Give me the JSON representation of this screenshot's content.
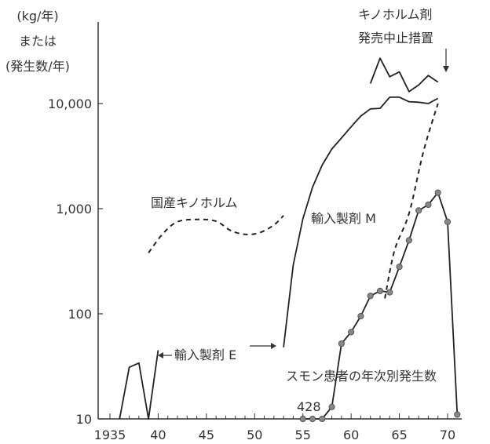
{
  "chart_data": {
    "type": "line",
    "ylabel_lines": [
      "(kg/年)",
      "または",
      "(発生数/年)"
    ],
    "yscale": "log",
    "ylim": [
      10,
      30000
    ],
    "xlim": [
      1935,
      1971
    ],
    "x_tick_labels": [
      {
        "x": 1935,
        "label": "1935"
      },
      {
        "x": 1940,
        "label": "40"
      },
      {
        "x": 1945,
        "label": "45"
      },
      {
        "x": 1950,
        "label": "50"
      },
      {
        "x": 1955,
        "label": "55"
      },
      {
        "x": 1960,
        "label": "60"
      },
      {
        "x": 1965,
        "label": "65"
      },
      {
        "x": 1970,
        "label": "70"
      }
    ],
    "y_tick_labels": [
      {
        "y": 10,
        "label": "10"
      },
      {
        "y": 100,
        "label": "100"
      },
      {
        "y": 1000,
        "label": "1,000"
      },
      {
        "y": 10000,
        "label": "10,000"
      }
    ],
    "series": [
      {
        "key": "domestic",
        "name": "国産キノホルム",
        "style": "dashed",
        "x": [
          1939,
          1940.5,
          1942,
          1944,
          1946,
          1947.5,
          1949,
          1950.5,
          1952,
          1953
        ],
        "y": [
          380,
          580,
          750,
          790,
          760,
          620,
          570,
          590,
          700,
          860
        ]
      },
      {
        "key": "importE",
        "name": "輸入製剤 E",
        "style": "solid",
        "x": [
          1936,
          1937,
          1938,
          1939,
          1940
        ],
        "y": [
          10,
          31,
          34,
          10,
          45
        ]
      },
      {
        "key": "importM",
        "name": "輸入製剤 M",
        "style": "solid",
        "x": [
          1953,
          1954,
          1955,
          1956,
          1957,
          1958,
          1959,
          1960,
          1961,
          1962,
          1963,
          1964,
          1965,
          1966,
          1967,
          1968,
          1969
        ],
        "y": [
          48,
          290,
          800,
          1600,
          2600,
          3700,
          4700,
          6000,
          7600,
          8900,
          9000,
          11500,
          11500,
          10400,
          10300,
          10000,
          11200
        ]
      },
      {
        "key": "total",
        "name": "",
        "style": "solid",
        "x": [
          1962,
          1963,
          1964,
          1965,
          1966,
          1967,
          1968,
          1969
        ],
        "y": [
          15500,
          27000,
          18000,
          20000,
          13000,
          15000,
          18500,
          16000
        ]
      },
      {
        "key": "domesticLate",
        "name": "",
        "style": "dashed",
        "x": [
          1963.5,
          1964.5,
          1966,
          1967.5,
          1969
        ],
        "y": [
          140,
          400,
          900,
          3500,
          10000
        ]
      },
      {
        "key": "patients",
        "name": "スモン患者の年次別発生数",
        "style": "markers",
        "x": [
          1955,
          1956,
          1957,
          1958,
          1959,
          1960,
          1961,
          1962,
          1963,
          1964,
          1965,
          1966,
          1967,
          1968,
          1969,
          1970,
          1971
        ],
        "y": [
          10,
          10,
          10,
          13,
          52,
          67,
          95,
          148,
          165,
          160,
          280,
          500,
          960,
          1090,
          1420,
          750,
          11
        ]
      }
    ],
    "annotations": {
      "domestic_label": "国産キノホルム",
      "importE_label": "輸入製剤 E",
      "importM_label": "輸入製剤 M",
      "patients_label": "スモン患者の年次別発生数",
      "count_428": "428",
      "stop_measure_line1": "キノホルム剤",
      "stop_measure_line2": "発売中止措置"
    }
  }
}
